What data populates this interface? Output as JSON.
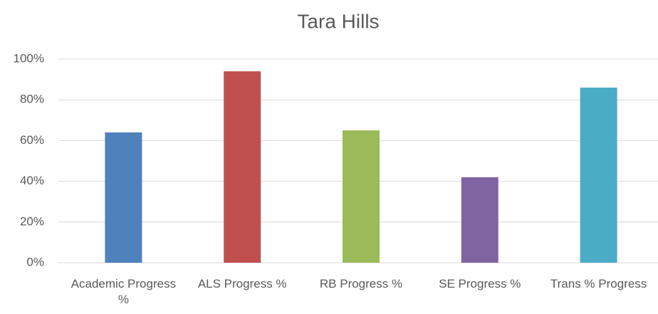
{
  "chart_data": {
    "type": "bar",
    "title": "Tara Hills",
    "categories": [
      "Academic Progress %",
      "ALS Progress %",
      "RB Progress %",
      "SE Progress %",
      "Trans % Progress"
    ],
    "values": [
      64,
      94,
      65,
      42,
      86
    ],
    "colors": [
      "#4f81bd",
      "#c0504d",
      "#9bbb59",
      "#8064a2",
      "#4bacc6"
    ],
    "ylim": [
      0,
      100
    ],
    "yticks": [
      {
        "value": 0,
        "label": "0%"
      },
      {
        "value": 20,
        "label": "20%"
      },
      {
        "value": 40,
        "label": "40%"
      },
      {
        "value": 60,
        "label": "60%"
      },
      {
        "value": 80,
        "label": "80%"
      },
      {
        "value": 100,
        "label": "100%"
      }
    ],
    "grid": true
  }
}
